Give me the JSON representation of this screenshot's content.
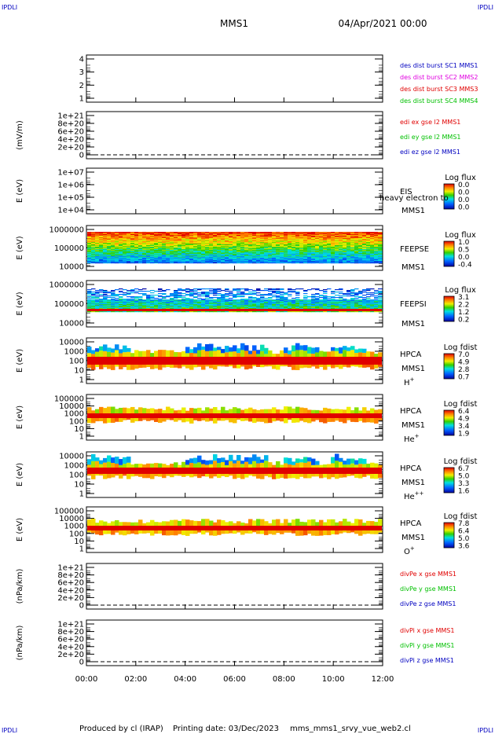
{
  "header": {
    "corner_left": "IPDLI",
    "corner_right": "IPDLI",
    "mission": "MMS1",
    "date": "04/Apr/2021 00:00"
  },
  "footer": {
    "producer": "Produced by cl (IRAP)",
    "printing_date": "Printing date: 03/Dec/2023",
    "script": "mms_mms1_srvy_vue_web2.cl",
    "corner_left": "IPDLI",
    "corner_right": "IPDLI"
  },
  "time_axis": {
    "labels": [
      "00:00",
      "02:00",
      "04:00",
      "06:00",
      "08:00",
      "10:00",
      "12:00"
    ],
    "range_hours": [
      0,
      12
    ]
  },
  "colors": {
    "blue": "#0000c0",
    "magenta": "#e000e0",
    "red": "#e00000",
    "green": "#00c000",
    "dash": "#000000"
  },
  "chart_data": [
    {
      "type": "line",
      "ylabel": "",
      "yticks": [
        "4",
        "3",
        "2",
        "1"
      ],
      "ylim": [
        0.5,
        4.5
      ],
      "legend": [
        {
          "label": "des dist burst SC1 MMS1",
          "color": "#0000c0"
        },
        {
          "label": "des dist burst SC2 MMS2",
          "color": "#e000e0"
        },
        {
          "label": "des dist burst SC3 MMS3",
          "color": "#e00000"
        },
        {
          "label": "des dist burst SC4 MMS4",
          "color": "#00c000"
        }
      ]
    },
    {
      "type": "line",
      "ylabel": "(mV/m)",
      "yticks": [
        "1e+21",
        "8e+20",
        "6e+20",
        "4e+20",
        "2e+20",
        "0"
      ],
      "ylim": [
        0,
        1e+21
      ],
      "zero_line": true,
      "legend": [
        {
          "label": "edi ex gse l2 MMS1",
          "color": "#e00000"
        },
        {
          "label": "edi ey gse l2 MMS1",
          "color": "#00c000"
        },
        {
          "label": "edi ez gse l2 MMS1",
          "color": "#0000c0"
        }
      ]
    },
    {
      "type": "heatmap",
      "ylabel": "E (eV)",
      "yticks": [
        "1e+07",
        "1e+06",
        "1e+05",
        "1e+04"
      ],
      "ylim": [
        10000.0,
        10000000.0
      ],
      "instrument": "EIS",
      "instrument_overlay": "heavy electron to",
      "spacecraft": "MMS1",
      "colorbar": {
        "title": "Log flux",
        "ticks": [
          "0.0",
          "0.0",
          "0.0",
          "0.0"
        ]
      }
    },
    {
      "type": "heatmap",
      "ylabel": "E (eV)",
      "yticks": [
        "1000000",
        "100000",
        "10000"
      ],
      "ylim": [
        10000.0,
        1000000.0
      ],
      "instrument": "FEEPSE",
      "spacecraft": "MMS1",
      "colorbar": {
        "title": "Log flux",
        "ticks": [
          "1.0",
          "0.5",
          "0.0",
          "-0.4"
        ]
      }
    },
    {
      "type": "heatmap",
      "ylabel": "E (eV)",
      "yticks": [
        "1000000",
        "100000",
        "10000"
      ],
      "ylim": [
        10000.0,
        1000000.0
      ],
      "instrument": "FEEPSI",
      "spacecraft": "MMS1",
      "colorbar": {
        "title": "Log flux",
        "ticks": [
          "3.1",
          "2.2",
          "1.2",
          "0.2"
        ]
      }
    },
    {
      "type": "heatmap",
      "ylabel": "E (eV)",
      "yticks": [
        "10000",
        "1000",
        "100",
        "10",
        "1"
      ],
      "ylim": [
        1,
        10000.0
      ],
      "instrument": "HPCA",
      "spacecraft": "MMS1",
      "species": "H",
      "charge": "+",
      "colorbar": {
        "title": "Log fdist",
        "ticks": [
          "7.0",
          "4.9",
          "2.8",
          "0.7"
        ]
      }
    },
    {
      "type": "heatmap",
      "ylabel": "E (eV)",
      "yticks": [
        "100000",
        "10000",
        "1000",
        "100",
        "10",
        "1"
      ],
      "ylim": [
        1,
        100000.0
      ],
      "instrument": "HPCA",
      "spacecraft": "MMS1",
      "species": "He",
      "charge": "+",
      "colorbar": {
        "title": "Log fdist",
        "ticks": [
          "6.4",
          "4.9",
          "3.4",
          "1.9"
        ]
      }
    },
    {
      "type": "heatmap",
      "ylabel": "E (eV)",
      "yticks": [
        "10000",
        "1000",
        "100",
        "10",
        "1"
      ],
      "ylim": [
        1,
        10000.0
      ],
      "instrument": "HPCA",
      "spacecraft": "MMS1",
      "species": "He",
      "charge": "++",
      "colorbar": {
        "title": "Log fdist",
        "ticks": [
          "6.7",
          "5.0",
          "3.3",
          "1.6"
        ]
      }
    },
    {
      "type": "heatmap",
      "ylabel": "E (eV)",
      "yticks": [
        "100000",
        "10000",
        "1000",
        "100",
        "10",
        "1"
      ],
      "ylim": [
        1,
        100000.0
      ],
      "instrument": "HPCA",
      "spacecraft": "MMS1",
      "species": "O",
      "charge": "+",
      "colorbar": {
        "title": "Log fdist",
        "ticks": [
          "7.8",
          "6.4",
          "5.0",
          "3.6"
        ]
      }
    },
    {
      "type": "line",
      "ylabel": "(nPa/km)",
      "yticks": [
        "1e+21",
        "8e+20",
        "6e+20",
        "4e+20",
        "2e+20",
        "0"
      ],
      "ylim": [
        0,
        1e+21
      ],
      "zero_line": true,
      "legend": [
        {
          "label": "divPe x gse MMS1",
          "color": "#e00000"
        },
        {
          "label": "divPe y gse MMS1",
          "color": "#00c000"
        },
        {
          "label": "divPe z gse MMS1",
          "color": "#0000c0"
        }
      ]
    },
    {
      "type": "line",
      "ylabel": "(nPa/km)",
      "yticks": [
        "1e+21",
        "8e+20",
        "6e+20",
        "4e+20",
        "2e+20",
        "0"
      ],
      "ylim": [
        0,
        1e+21
      ],
      "zero_line": true,
      "legend": [
        {
          "label": "divPi x gse MMS1",
          "color": "#e00000"
        },
        {
          "label": "divPi y gse MMS1",
          "color": "#00c000"
        },
        {
          "label": "divPi z gse MMS1",
          "color": "#0000c0"
        }
      ]
    }
  ]
}
